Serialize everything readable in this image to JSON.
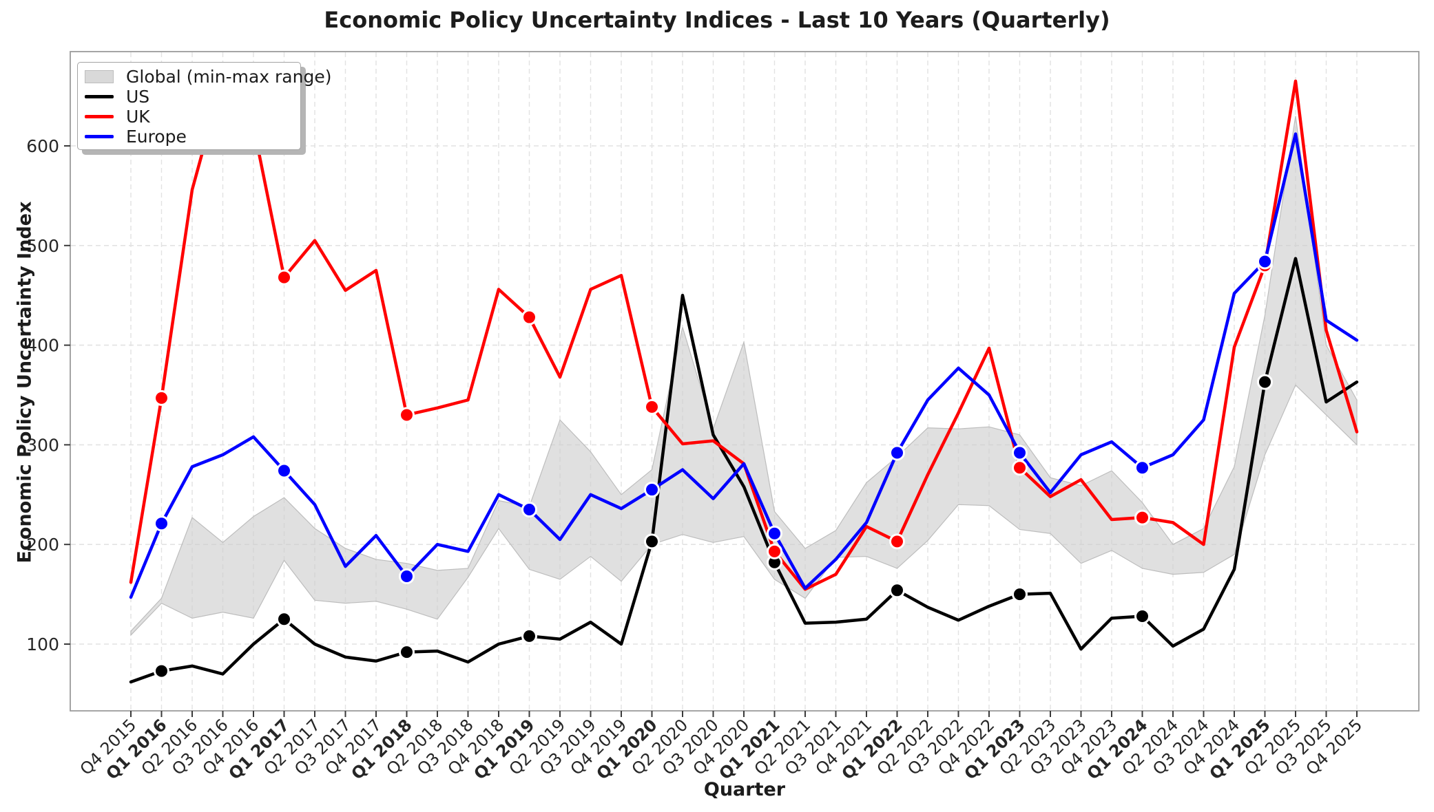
{
  "figure": {
    "background_color": "#ffffff",
    "grid_color": "#e2e2e2",
    "spine_color": "#9b9b9b",
    "tick_color": "#3a3a3a",
    "text_color": "#1c1c1c"
  },
  "legend": {
    "position": "upper-left",
    "items_order": [
      "band",
      "US",
      "UK",
      "Europe"
    ]
  },
  "chart_data": {
    "type": "line",
    "title": "Economic Policy Uncertainty Indices - Last 10 Years (Quarterly)",
    "xlabel": "Quarter",
    "ylabel": "Economic Policy Uncertainty Index",
    "ylim": [
      33,
      695
    ],
    "y_ticks": [
      100,
      200,
      300,
      400,
      500,
      600
    ],
    "grid": "dashed-both-axes",
    "x_tick_rotation_deg": 45,
    "bold_x_ticks_prefix": "Q1",
    "categories": [
      "Q4 2015",
      "Q1 2016",
      "Q2 2016",
      "Q3 2016",
      "Q4 2016",
      "Q1 2017",
      "Q2 2017",
      "Q3 2017",
      "Q4 2017",
      "Q1 2018",
      "Q2 2018",
      "Q3 2018",
      "Q4 2018",
      "Q1 2019",
      "Q2 2019",
      "Q3 2019",
      "Q4 2019",
      "Q1 2020",
      "Q2 2020",
      "Q3 2020",
      "Q4 2020",
      "Q1 2021",
      "Q2 2021",
      "Q3 2021",
      "Q4 2021",
      "Q1 2022",
      "Q2 2022",
      "Q3 2022",
      "Q4 2022",
      "Q1 2023",
      "Q2 2023",
      "Q3 2023",
      "Q4 2023",
      "Q1 2024",
      "Q2 2024",
      "Q3 2024",
      "Q4 2024",
      "Q1 2025",
      "Q2 2025",
      "Q3 2025",
      "Q4 2025"
    ],
    "band": {
      "label": "Global (min-max range)",
      "color": "#cdcdcd",
      "edge_color": "#bdbdbd",
      "opacity": 0.62,
      "min": [
        109,
        141,
        126,
        132,
        126,
        184,
        144,
        141,
        143,
        135,
        125,
        167,
        216,
        175,
        165,
        188,
        163,
        200,
        210,
        202,
        208,
        165,
        146,
        187,
        188,
        176,
        204,
        240,
        239,
        215,
        211,
        181,
        194,
        176,
        170,
        172,
        190,
        290,
        360,
        330,
        300
      ],
      "max": [
        113,
        146,
        227,
        202,
        228,
        247,
        216,
        196,
        185,
        181,
        174,
        176,
        244,
        238,
        325,
        293,
        250,
        275,
        418,
        316,
        403,
        233,
        196,
        214,
        262,
        288,
        317,
        316,
        318,
        310,
        267,
        259,
        274,
        242,
        200,
        216,
        278,
        430,
        630,
        400,
        345
      ]
    },
    "marker_indices": [
      1,
      5,
      9,
      13,
      17,
      21,
      25,
      29,
      33,
      37
    ],
    "series": [
      {
        "name": "US",
        "color": "#000000",
        "values": [
          62,
          73,
          78,
          70,
          100,
          125,
          100,
          87,
          83,
          92,
          93,
          82,
          100,
          108,
          105,
          122,
          100,
          203,
          450,
          310,
          258,
          182,
          121,
          122,
          125,
          154,
          137,
          124,
          138,
          150,
          151,
          95,
          126,
          128,
          98,
          115,
          175,
          363,
          487,
          343,
          363
        ]
      },
      {
        "name": "UK",
        "color": "#ff0000",
        "values": [
          162,
          347,
          556,
          668,
          620,
          468,
          505,
          455,
          475,
          330,
          337,
          345,
          456,
          428,
          368,
          456,
          470,
          338,
          301,
          304,
          281,
          193,
          155,
          170,
          218,
          203,
          270,
          332,
          397,
          277,
          248,
          265,
          225,
          227,
          222,
          200,
          398,
          480,
          665,
          415,
          313
        ]
      },
      {
        "name": "Europe",
        "color": "#0000ff",
        "values": [
          147,
          221,
          278,
          290,
          308,
          274,
          240,
          178,
          209,
          168,
          200,
          193,
          250,
          235,
          205,
          250,
          236,
          255,
          275,
          246,
          281,
          211,
          156,
          185,
          222,
          292,
          345,
          377,
          350,
          292,
          252,
          290,
          303,
          277,
          290,
          325,
          452,
          484,
          612,
          425,
          405
        ]
      }
    ]
  }
}
